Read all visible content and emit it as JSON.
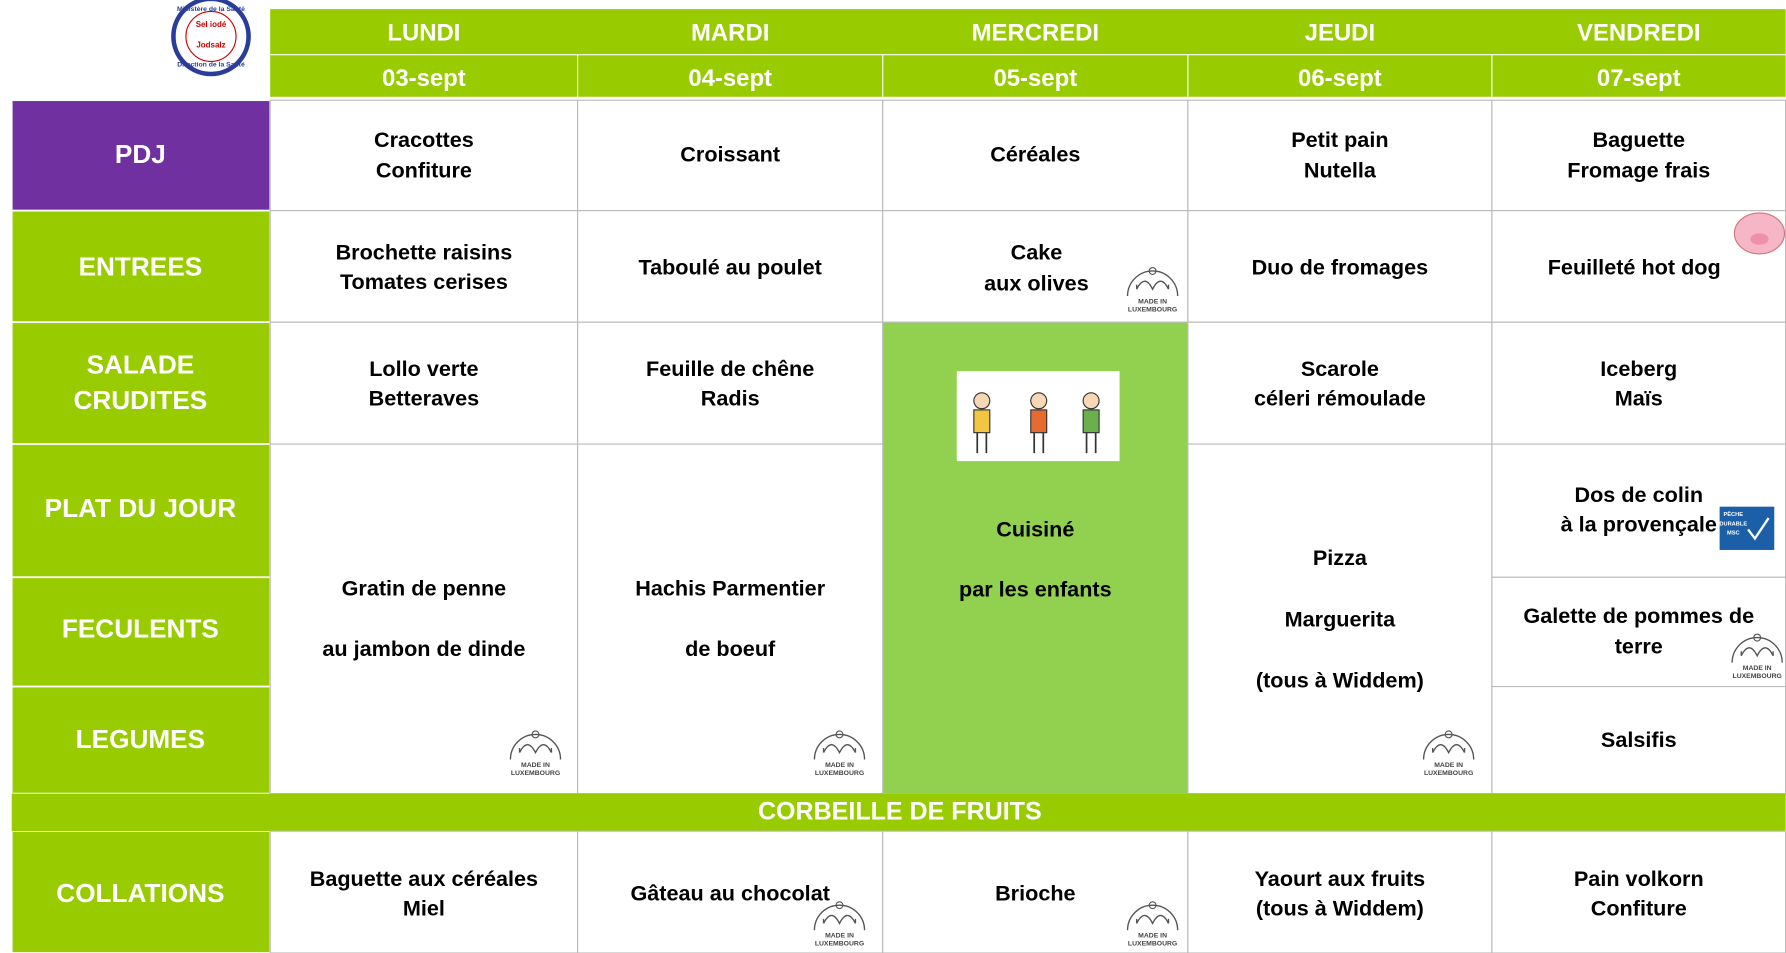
{
  "logo": {
    "top": "Ministère de la Santé",
    "line1": "Sel iodé",
    "line2": "Jodsalz",
    "bottom": "Direction de la Santé"
  },
  "days": [
    {
      "name": "LUNDI",
      "date": "03-sept"
    },
    {
      "name": "MARDI",
      "date": "04-sept"
    },
    {
      "name": "MERCREDI",
      "date": "05-sept"
    },
    {
      "name": "JEUDI",
      "date": "06-sept"
    },
    {
      "name": "VENDREDI",
      "date": "07-sept"
    }
  ],
  "row_labels": [
    [
      "PDJ"
    ],
    [
      "ENTREES"
    ],
    [
      "SALADE",
      "CRUDITES"
    ],
    [
      "PLAT DU JOUR"
    ],
    [
      "FECULENTS"
    ],
    [
      "LEGUMES"
    ],
    [
      "COLLATIONS"
    ]
  ],
  "cells": [
    [
      "Cracottes",
      "Confiture"
    ],
    [
      "Croissant"
    ],
    [
      "Céréales"
    ],
    [
      "Petit pain",
      "Nutella"
    ],
    [
      "Baguette",
      "Fromage frais"
    ],
    [
      "Brochette raisins",
      "Tomates cerises"
    ],
    [
      "Taboulé au poulet"
    ],
    [
      "Cake",
      "aux olives"
    ],
    [
      "Duo de fromages"
    ],
    [
      "Feuilleté hot dog"
    ],
    [
      "Lollo verte",
      "Betteraves"
    ],
    [
      "Feuille de chêne",
      "Radis"
    ],
    [
      "Cuisiné",
      "par les enfants"
    ],
    [
      "Scarole",
      "céleri rémoulade"
    ],
    [
      "Iceberg",
      "Maïs"
    ],
    [
      "Gratin de penne",
      "au jambon de dinde"
    ],
    [
      "Hachis Parmentier",
      "de boeuf"
    ],
    [
      "Pizza",
      "Marguerita",
      "(tous à Widdem)"
    ],
    [
      "Dos de colin",
      "à la provençale"
    ],
    [
      "Galette de pommes de",
      "terre"
    ],
    [
      "Salsifis"
    ]
  ],
  "fruit_banner": "CORBEILLE DE FRUITS",
  "collations": [
    [
      "Baguette aux céréales",
      "Miel"
    ],
    [
      "Gâteau au chocolat"
    ],
    [
      "Brioche"
    ],
    [
      "Yaourt aux fruits",
      "(tous à Widdem)"
    ],
    [
      "Pain volkorn",
      "Confiture"
    ]
  ],
  "badge": {
    "line1": "MADE IN",
    "line2": "LUXEMBOURG"
  },
  "msc": {
    "line1": "PÊCHE",
    "line2": "DURABLE",
    "line3": "MSC"
  }
}
